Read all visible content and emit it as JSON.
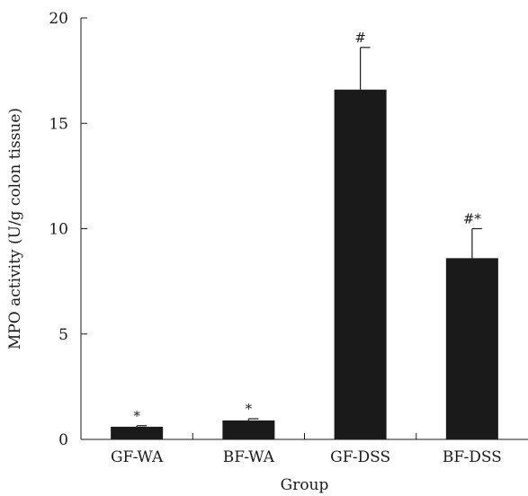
{
  "chart_data": {
    "type": "bar",
    "title": "",
    "xlabel": "Group",
    "ylabel": "MPO activity (U/g colon tissue)",
    "ylim": [
      0,
      20
    ],
    "yticks": [
      0,
      5,
      10,
      15,
      20
    ],
    "grid": false,
    "categories": [
      "GF-WA",
      "BF-WA",
      "GF-DSS",
      "BF-DSS"
    ],
    "values": [
      0.6,
      0.9,
      16.6,
      8.6
    ],
    "errors": [
      0.05,
      0.08,
      2.0,
      1.4
    ],
    "annotations": [
      "*",
      "*",
      "#",
      "#*"
    ],
    "bar_color": "#1a1a1a"
  }
}
